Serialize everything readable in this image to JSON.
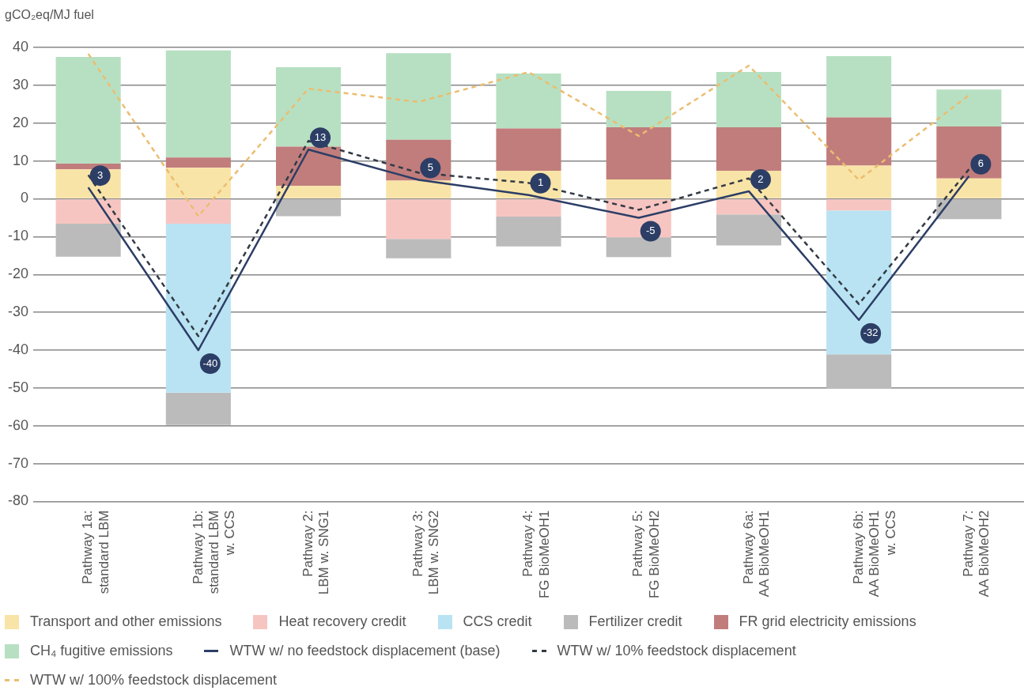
{
  "chart_data": {
    "type": "bar",
    "stacked": true,
    "ylabel": "gCO₂eq/MJ fuel",
    "categories": [
      "Pathway 1a:\nstandard LBM",
      "Pathway 1b:\nstandard LBM\nw. CCS",
      "Pathway 2:\nLBM w. SNG1",
      "Pathway 3:\nLBM w. SNG2",
      "Pathway 4:\nFG BioMeOH1",
      "Pathway 5:\nFG BioMeOH2",
      "Pathway 6a:\nAA BioMeOH1",
      "Pathway 6b:\nAA BioMeOH1\nw. CCS",
      "Pathway 7:\nAA BioMeOH2"
    ],
    "series": [
      {
        "name": "Transport and other emissions",
        "color": "#f9e4a7",
        "values": [
          7.8,
          8.2,
          3.4,
          4.8,
          7.4,
          5.1,
          7.4,
          8.8,
          5.4
        ]
      },
      {
        "name": "Heat recovery credit",
        "color": "#f7c5c1",
        "values": [
          -6.6,
          -6.6,
          0,
          -10.6,
          -4.7,
          -10.2,
          -4.1,
          -3.1,
          0
        ]
      },
      {
        "name": "CCS credit",
        "color": "#b9e3f2",
        "values": [
          0,
          -44.6,
          0,
          0,
          0,
          0,
          0,
          -38.0,
          0
        ]
      },
      {
        "name": "Fertilizer credit",
        "color": "#bbbbbb",
        "values": [
          -8.7,
          -8.6,
          -4.6,
          -5.1,
          -7.9,
          -5.2,
          -8.2,
          -8.9,
          -5.4
        ]
      },
      {
        "name": "FR grid electricity emissions",
        "color": "#c17d7c",
        "values": [
          1.5,
          2.7,
          10.4,
          10.8,
          11.2,
          13.8,
          11.5,
          12.7,
          13.7
        ]
      },
      {
        "name": "CH₄ fugitive emissions",
        "color": "#b7e0c2",
        "values": [
          28.2,
          28.3,
          21.0,
          22.9,
          14.5,
          9.6,
          14.6,
          16.2,
          9.8
        ]
      },
      {
        "name": "WTW w/ no feedstock displacement (base)",
        "type": "line",
        "color": "#2c3e66",
        "line_style": "solid",
        "values": [
          3,
          -40,
          13,
          5,
          1,
          -5,
          2,
          -32,
          6
        ],
        "value_labels": [
          "3",
          "-40",
          "13",
          "5",
          "1",
          "-5",
          "2",
          "-32",
          "6"
        ]
      },
      {
        "name": "WTW w/ 10% feedstock displacement",
        "type": "line",
        "color": "#333a45",
        "line_style": "dashed",
        "values": [
          6.3,
          -36.3,
          15.3,
          6.9,
          4.2,
          -2.9,
          5.4,
          -27.8,
          7.8
        ]
      },
      {
        "name": "WTW w/ 100% feedstock displacement",
        "type": "line",
        "color": "#ebbd70",
        "line_style": "dashed",
        "values": [
          38.3,
          -4.6,
          29.1,
          25.6,
          33.5,
          16.6,
          35.2,
          5.0,
          27.4
        ]
      }
    ],
    "ylim": [
      -80,
      40
    ],
    "yticks": [
      -80,
      -70,
      -60,
      -50,
      -40,
      -30,
      -20,
      -10,
      0,
      10,
      20,
      30,
      40
    ],
    "grid": "y",
    "legend": "bottom",
    "marker": "none"
  }
}
